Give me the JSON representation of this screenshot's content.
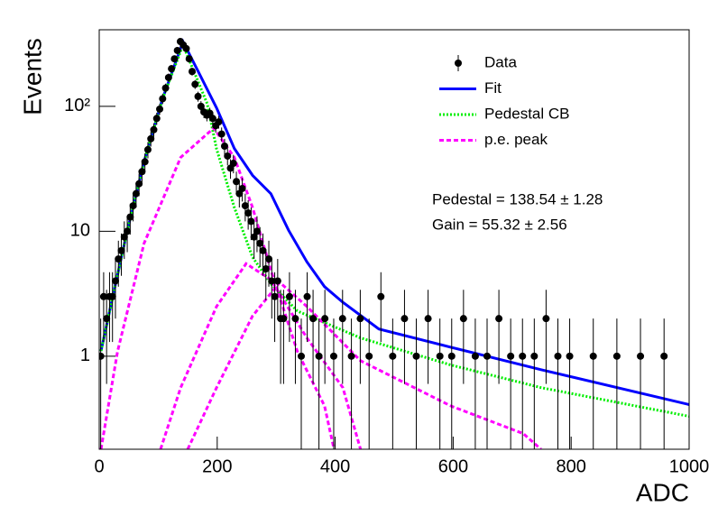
{
  "chart_data": {
    "type": "log-line-points",
    "ylabel": "Events",
    "xlabel": "ADC",
    "xlim": [
      0,
      1000
    ],
    "xticks": [
      0,
      200,
      400,
      600,
      800,
      1000
    ],
    "ylim": [
      0.18,
      410
    ],
    "log_y": true,
    "yticks": [
      1,
      10,
      {
        "value": 100,
        "label": "10²"
      }
    ],
    "legend": "top-right",
    "annotations": [
      "Pedestal = 138.54 ± 1.28",
      "Gain = 55.32 ± 2.56"
    ],
    "series": [
      {
        "name": "Data",
        "color": "#000000",
        "style": "points",
        "x": [
          2.5,
          7.5,
          12.5,
          17.5,
          22.5,
          27.5,
          32.5,
          37.5,
          42.5,
          47.5,
          52.5,
          57.5,
          62.5,
          67.5,
          72.5,
          77.5,
          82.5,
          87.5,
          92.5,
          97.5,
          102.5,
          107.5,
          112.5,
          117.5,
          122.5,
          127.5,
          132.5,
          137.5,
          142.5,
          147.5,
          152.5,
          157.5,
          162.5,
          167.5,
          172.5,
          177.5,
          182.5,
          187.5,
          192.5,
          197.5,
          202.5,
          207.5,
          212.5,
          217.5,
          222.5,
          227.5,
          232.5,
          237.5,
          242.5,
          247.5,
          252.5,
          257.5,
          262.5,
          267.5,
          272.5,
          277.5,
          282.5,
          287.5,
          292.5,
          297.5,
          302.5,
          307.5,
          312.5,
          322.5,
          332.5,
          342.5,
          352.5,
          362.5,
          372.5,
          382.5,
          397.5,
          412.5,
          427.5,
          442.5,
          457.5,
          477.5,
          497.5,
          517.5,
          537.5,
          557.5,
          577.5,
          597.5,
          617.5,
          637.5,
          657.5,
          677.5,
          697.5,
          717.5,
          737.5,
          757.5,
          777.5,
          797.5,
          837.5,
          877.5,
          917.5,
          957.5
        ],
        "values": [
          1,
          3,
          2,
          3,
          3,
          4,
          6,
          7,
          9,
          10,
          13,
          16,
          20,
          24,
          30,
          36,
          45,
          55,
          65,
          80,
          95,
          115,
          140,
          170,
          200,
          240,
          280,
          330,
          310,
          290,
          240,
          190,
          150,
          120,
          100,
          90,
          85,
          88,
          80,
          70,
          75,
          60,
          48,
          40,
          32,
          35,
          25,
          20,
          22,
          16,
          14,
          12,
          9,
          10,
          8,
          7,
          5,
          6,
          4,
          3,
          4,
          2,
          2,
          3,
          2,
          1,
          3,
          2,
          1,
          2,
          1,
          2,
          1,
          2,
          1,
          3,
          1,
          2,
          1,
          2,
          1,
          1,
          2,
          1,
          1,
          2,
          1,
          1,
          1,
          2,
          1,
          1,
          1,
          1,
          1,
          1
        ],
        "errors": [
          1,
          1.7,
          1.4,
          1.7,
          1.7,
          2,
          2.4,
          2.6,
          3,
          3.2,
          3.6,
          4,
          4.5,
          4.9,
          5.5,
          6,
          6.7,
          7.4,
          8.1,
          8.9,
          9.7,
          10.7,
          11.8,
          13,
          14.1,
          15.5,
          16.7,
          18.2,
          17.6,
          17,
          15.5,
          13.8,
          12.2,
          11,
          10,
          9.5,
          9.2,
          9.4,
          8.9,
          8.4,
          8.7,
          7.7,
          6.9,
          6.3,
          5.7,
          5.9,
          5,
          4.5,
          4.7,
          4,
          3.7,
          3.5,
          3,
          3.2,
          2.8,
          2.6,
          2.2,
          2.4,
          2,
          1.7,
          2,
          1.4,
          1.4,
          1.7,
          1.4,
          1,
          1.7,
          1.4,
          1,
          1.4,
          1,
          1.4,
          1,
          1.4,
          1,
          1.7,
          1,
          1.4,
          1,
          1.4,
          1,
          1,
          1.4,
          1,
          1,
          1.4,
          1,
          1,
          1,
          1.4,
          1,
          1,
          1,
          1,
          1,
          1
        ]
      },
      {
        "name": "Fit",
        "color": "#0000ff",
        "style": "solid",
        "x": [
          3,
          23,
          46,
          76,
          107,
          142,
          168,
          199,
          229,
          260,
          291,
          321,
          352,
          382,
          413,
          474,
          596,
          749,
          1000
        ],
        "values": [
          1.1,
          3,
          9.4,
          36,
          114,
          330,
          189,
          97,
          46,
          28,
          20,
          10.2,
          5.7,
          3.6,
          2.7,
          1.65,
          1.18,
          0.78,
          0.41
        ]
      },
      {
        "name": "Pedestal CB",
        "color": "#00ee00",
        "style": "dotted",
        "x": [
          3,
          23,
          46,
          76,
          107,
          142,
          183,
          199,
          229,
          260,
          291,
          336,
          443,
          596,
          749,
          1000
        ],
        "values": [
          1.1,
          3,
          9.4,
          36,
          114,
          310,
          105,
          45.6,
          15.5,
          6.2,
          3.8,
          2.3,
          1.4,
          0.85,
          0.56,
          0.33
        ]
      },
      {
        "name": "p.e. peak",
        "color": "#ff00ff",
        "style": "dashed",
        "x": [
          3,
          31,
          76,
          138,
          194,
          229,
          260,
          291,
          336,
          382,
          398,
          null,
          104,
          138,
          199,
          249,
          291,
          352,
          413,
          443,
          null,
          150,
          199,
          260,
          306,
          352,
          443,
          596,
          719,
          749
        ],
        "values": [
          0.18,
          1.09,
          8,
          39,
          67,
          39,
          15.5,
          4.9,
          1.09,
          0.4,
          0.18,
          null,
          0.18,
          0.56,
          2.5,
          5.5,
          4.1,
          1.4,
          0.56,
          0.18,
          null,
          0.18,
          0.56,
          2.1,
          3.9,
          2.5,
          0.92,
          0.4,
          0.24,
          0.18
        ]
      }
    ]
  }
}
